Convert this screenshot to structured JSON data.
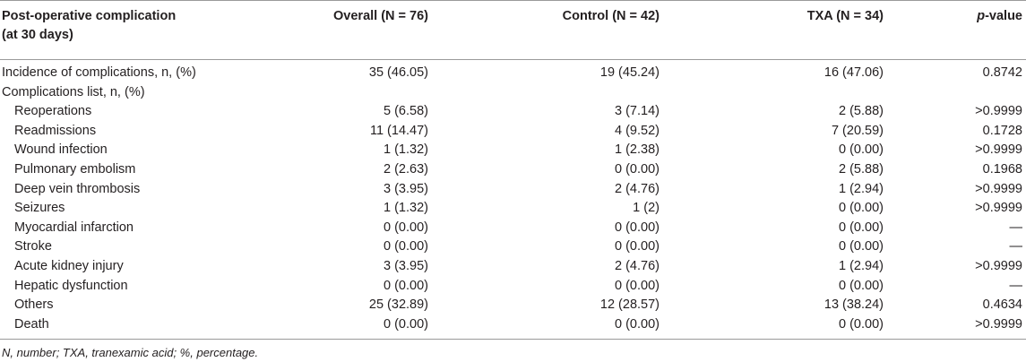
{
  "header": {
    "col0_line1": "Post-operative complication",
    "col0_line2": "(at 30 days)",
    "col1": "Overall (N = 76)",
    "col2": "Control (N = 42)",
    "col3": "TXA (N = 34)",
    "col4_italic": "p",
    "col4_rest": "-value"
  },
  "rows": [
    {
      "label": "Incidence of complications, n, (%)",
      "overall": "35 (46.05)",
      "control": "19 (45.24)",
      "txa": "16 (47.06)",
      "p": "0.8742"
    },
    {
      "label": "Complications list, n, (%)",
      "overall": "",
      "control": "",
      "txa": "",
      "p": ""
    },
    {
      "label": "Reoperations",
      "overall": "5 (6.58)",
      "control": "3 (7.14)",
      "txa": "2 (5.88)",
      "p": ">0.9999"
    },
    {
      "label": "Readmissions",
      "overall": "11 (14.47)",
      "control": "4 (9.52)",
      "txa": "7 (20.59)",
      "p": "0.1728"
    },
    {
      "label": "Wound infection",
      "overall": "1 (1.32)",
      "control": "1 (2.38)",
      "txa": "0 (0.00)",
      "p": ">0.9999"
    },
    {
      "label": "Pulmonary embolism",
      "overall": "2 (2.63)",
      "control": "0 (0.00)",
      "txa": "2 (5.88)",
      "p": "0.1968"
    },
    {
      "label": "Deep vein thrombosis",
      "overall": "3 (3.95)",
      "control": "2 (4.76)",
      "txa": "1 (2.94)",
      "p": ">0.9999"
    },
    {
      "label": "Seizures",
      "overall": "1 (1.32)",
      "control": "1 (2)",
      "txa": "0 (0.00)",
      "p": ">0.9999"
    },
    {
      "label": "Myocardial infarction",
      "overall": "0 (0.00)",
      "control": "0 (0.00)",
      "txa": "0 (0.00)",
      "p": "—"
    },
    {
      "label": "Stroke",
      "overall": "0 (0.00)",
      "control": "0 (0.00)",
      "txa": "0 (0.00)",
      "p": "—"
    },
    {
      "label": "Acute kidney injury",
      "overall": "3 (3.95)",
      "control": "2 (4.76)",
      "txa": "1 (2.94)",
      "p": ">0.9999"
    },
    {
      "label": "Hepatic dysfunction",
      "overall": "0 (0.00)",
      "control": "0 (0.00)",
      "txa": "0 (0.00)",
      "p": "—"
    },
    {
      "label": "Others",
      "overall": "25 (32.89)",
      "control": "12 (28.57)",
      "txa": "13 (38.24)",
      "p": "0.4634"
    },
    {
      "label": "Death",
      "overall": "0 (0.00)",
      "control": "0 (0.00)",
      "txa": "0 (0.00)",
      "p": ">0.9999"
    }
  ],
  "footnote": "N, number; TXA, tranexamic acid; %, percentage."
}
